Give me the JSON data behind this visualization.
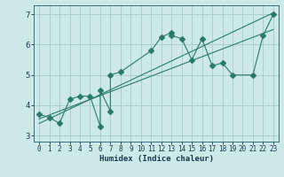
{
  "xlabel": "Humidex (Indice chaleur)",
  "bg_color": "#cce8e8",
  "grid_color": "#aacece",
  "line_color": "#2a7a6a",
  "xlim": [
    -0.5,
    23.5
  ],
  "ylim": [
    2.8,
    7.3
  ],
  "xticks": [
    0,
    1,
    2,
    3,
    4,
    5,
    6,
    7,
    8,
    9,
    10,
    11,
    12,
    13,
    14,
    15,
    16,
    17,
    18,
    19,
    20,
    21,
    22,
    23
  ],
  "yticks": [
    3,
    4,
    5,
    6,
    7
  ],
  "scatter_x": [
    0,
    1,
    2,
    3,
    4,
    5,
    6,
    6,
    7,
    7,
    8,
    11,
    12,
    13,
    13,
    14,
    15,
    16,
    17,
    18,
    19,
    21,
    22,
    23
  ],
  "scatter_y": [
    3.7,
    3.6,
    3.4,
    4.2,
    4.3,
    4.3,
    3.3,
    4.5,
    3.8,
    5.0,
    5.1,
    5.8,
    6.25,
    6.4,
    6.3,
    6.2,
    5.5,
    6.2,
    5.3,
    5.4,
    5.0,
    5.0,
    6.3,
    7.0
  ],
  "reg_line1": {
    "x": [
      0,
      23
    ],
    "y": [
      3.55,
      6.5
    ]
  },
  "reg_line2": {
    "x": [
      0,
      23
    ],
    "y": [
      3.4,
      7.05
    ]
  },
  "marker_size": 3,
  "line_width": 0.8,
  "tick_fontsize": 5.5,
  "xlabel_fontsize": 6.5
}
